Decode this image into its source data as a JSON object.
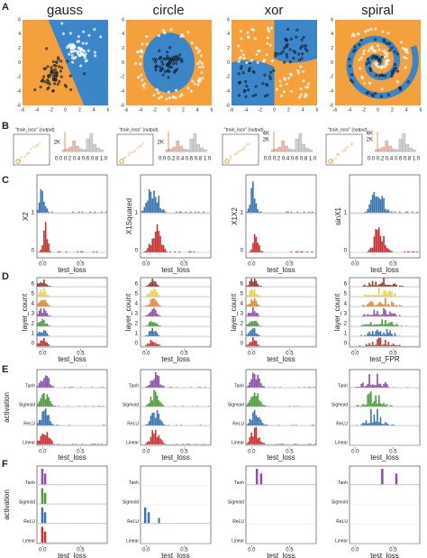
{
  "panel_labels": [
    "A",
    "B",
    "C",
    "D",
    "E",
    "F"
  ],
  "datasets": [
    "gauss",
    "circle",
    "xor",
    "spiral"
  ],
  "scatter_ticks": [
    -6,
    -4,
    -2,
    0,
    2,
    4,
    6
  ],
  "thumb_title": "\"train_loss\" (output)",
  "thumb_counts": [
    [
      "2K"
    ],
    [
      "2K"
    ],
    [
      "4K",
      "2K"
    ],
    [
      "4K",
      "2K"
    ]
  ],
  "thumb_xticks": [
    "0.0",
    "0.2",
    "0.4",
    "0.6",
    "0.8",
    "1.0"
  ],
  "row_c": {
    "ylabels": [
      "X2",
      "X1Squared",
      "X1X2",
      "sinX1"
    ],
    "yticks": [
      "1",
      "0"
    ],
    "xlabel": "test_loss",
    "xticks": [
      "0.0",
      "0.5"
    ]
  },
  "row_d": {
    "ylabel": "layer_count",
    "yticks": [
      "6",
      "5",
      "4",
      "3",
      "2",
      "1",
      "0"
    ],
    "xlabels": [
      "test_loss",
      "test_loss",
      "test_loss",
      "test_FPR"
    ],
    "xticks": [
      "0.0",
      "0.5"
    ]
  },
  "row_e": {
    "ylabel": "activation",
    "categories": [
      "Tanh",
      "Sigmoid",
      "ReLU",
      "Linear"
    ],
    "xlabel": "test_loss",
    "xticks": [
      "0.0",
      "0.5"
    ]
  },
  "row_f": {
    "ylabel": "activation",
    "categories": [
      "Tanh",
      "Sigmoid",
      "ReLU",
      "Linear"
    ],
    "xlabel": "test_loss",
    "xticks": [
      "0.0",
      "0.5"
    ]
  }
}
